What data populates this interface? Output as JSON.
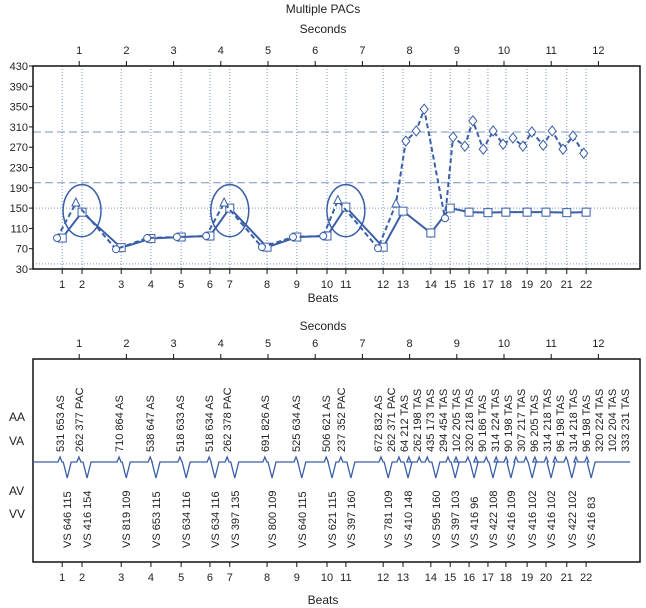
{
  "colors": {
    "series": "#3a5fa8",
    "grid": "#7a94c8",
    "axis": "#111111"
  },
  "chart_data": [
    {
      "type": "line",
      "title": "Multiple PACs",
      "top_axis_label": "Seconds",
      "xlabel": "Beats",
      "ylabel": "",
      "ylim": [
        30,
        430
      ],
      "yticks": [
        30,
        70,
        110,
        150,
        190,
        230,
        270,
        310,
        350,
        390,
        430
      ],
      "seconds_ticks": [
        1,
        2,
        3,
        4,
        5,
        6,
        7,
        8,
        9,
        10,
        11,
        12
      ],
      "reference_lines": [
        {
          "value": 300,
          "style": "dashed"
        },
        {
          "value": 200,
          "style": "dashed"
        },
        {
          "value": 150,
          "style": "dotted"
        },
        {
          "value": 40,
          "style": "dotted"
        }
      ],
      "beats": [
        1,
        2,
        3,
        4,
        5,
        6,
        7,
        8,
        9,
        10,
        11,
        12,
        13,
        14,
        15,
        16,
        17,
        18,
        19,
        20,
        21,
        22
      ],
      "beat_seconds": [
        0.64,
        1.06,
        1.89,
        2.52,
        3.16,
        3.77,
        4.19,
        4.98,
        5.61,
        6.25,
        6.65,
        7.44,
        7.86,
        8.45,
        8.86,
        9.26,
        9.66,
        10.04,
        10.49,
        10.89,
        11.33,
        11.74
      ],
      "highlighted_beats": [
        2,
        7,
        11
      ],
      "series": [
        {
          "style": "solid",
          "marker": "square",
          "x_seconds": [
            0.64,
            1.06,
            1.89,
            2.52,
            3.16,
            3.77,
            4.19,
            4.98,
            5.61,
            6.25,
            6.65,
            7.44,
            7.86,
            8.45,
            8.86,
            9.26,
            9.66,
            10.04,
            10.49,
            10.89,
            11.33,
            11.74
          ],
          "values": [
            91,
            142,
            72,
            90,
            93,
            95,
            150,
            73,
            93,
            95,
            152,
            73,
            144,
            101,
            150,
            142,
            141,
            142,
            142,
            142,
            141,
            142
          ]
        },
        {
          "style": "dashed",
          "x_seconds": [
            0.53,
            0.93,
            1.78,
            2.44,
            3.07,
            3.69,
            4.07,
            4.87,
            5.53,
            6.17,
            6.48,
            7.33,
            7.71,
            7.92,
            8.14,
            8.31,
            8.75,
            8.92,
            9.17,
            9.34,
            9.56,
            9.77,
            9.98,
            10.19,
            10.4,
            10.59,
            10.83,
            11.02,
            11.25,
            11.46,
            11.69
          ],
          "values": [
            91,
            160,
            69,
            91,
            93,
            95,
            160,
            73,
            93,
            95,
            165,
            71,
            158,
            282,
            302,
            345,
            130,
            290,
            272,
            322,
            266,
            302,
            276,
            288,
            272,
            300,
            274,
            302,
            266,
            292,
            258
          ],
          "markers": [
            "circle",
            "triangle",
            "circle",
            "circle",
            "circle",
            "circle",
            "triangle",
            "circle",
            "circle",
            "circle",
            "triangle",
            "circle",
            "triangle",
            "diamond",
            "diamond",
            "diamond",
            "circle",
            "diamond",
            "diamond",
            "diamond",
            "diamond",
            "diamond",
            "diamond",
            "diamond",
            "diamond",
            "diamond",
            "diamond",
            "diamond",
            "diamond",
            "diamond",
            "diamond"
          ]
        }
      ]
    },
    {
      "type": "table",
      "top_axis_label": "Seconds",
      "xlabel": "Beats",
      "row_labels": [
        "AA",
        "VA",
        "AV",
        "VV"
      ],
      "seconds_ticks": [
        1,
        2,
        3,
        4,
        5,
        6,
        7,
        8,
        9,
        10,
        11,
        12
      ],
      "atrial_events": [
        {
          "s": 0.53,
          "label": "531 653 AS"
        },
        {
          "s": 0.93,
          "label": "262 377 PAC"
        },
        {
          "s": 1.78,
          "label": "710 864 AS"
        },
        {
          "s": 2.44,
          "label": "538 647 AS"
        },
        {
          "s": 3.07,
          "label": "518 633 AS"
        },
        {
          "s": 3.69,
          "label": "518 634 AS"
        },
        {
          "s": 4.07,
          "label": "262 378 PAC"
        },
        {
          "s": 4.87,
          "label": "691 826 AS"
        },
        {
          "s": 5.53,
          "label": "525 634 AS"
        },
        {
          "s": 6.17,
          "label": "506 621 AS"
        },
        {
          "s": 6.48,
          "label": "237 352 PAC"
        },
        {
          "s": 7.33,
          "label": "672 832 AS"
        },
        {
          "s": 7.71,
          "label": "262 371 PAC"
        },
        {
          "s": 7.92,
          "label": "64 212 TAS"
        },
        {
          "s": 8.14,
          "label": "262 198 TAS"
        },
        {
          "s": 8.31,
          "label": "435 173 TAS"
        },
        {
          "s": 8.75,
          "label": "294 454 TAS"
        },
        {
          "s": 8.92,
          "label": "102 205 TAS"
        },
        {
          "s": 9.17,
          "label": "320 218 TAS"
        },
        {
          "s": 9.34,
          "label": "90 186 TAS"
        },
        {
          "s": 9.56,
          "label": "314 224 TAS"
        },
        {
          "s": 9.77,
          "label": "90 198 TAS"
        },
        {
          "s": 9.98,
          "label": "307 217 TAS"
        },
        {
          "s": 10.19,
          "label": "96 205 TAS"
        },
        {
          "s": 10.4,
          "label": "314 218 TAS"
        },
        {
          "s": 10.59,
          "label": "96 198 TAS"
        },
        {
          "s": 10.83,
          "label": "314 218 TAS"
        },
        {
          "s": 11.02,
          "label": "96 198 TAS"
        },
        {
          "s": 11.25,
          "label": "320 224 TAS"
        },
        {
          "s": 11.46,
          "label": "102 204 TAS"
        },
        {
          "s": 11.69,
          "label": "333 231 TAS"
        }
      ],
      "ventricular_labels": [
        "VS 646 115",
        "VS 416 154",
        "VS 819 109",
        "VS 653 115",
        "VS 634 116",
        "VS 634 116",
        "VS 397 135",
        "VS 800 109",
        "VS 640 115",
        "VS 621 115",
        "VS 397 160",
        "VS 781 109",
        "VS 410 148",
        "VS 595 160",
        "VS 397 103",
        "VS 416 96",
        "VS 422 108",
        "VS 416 109",
        "VS 416 102",
        "VS 416 102",
        "VS 422 102",
        "VS 416 83"
      ]
    }
  ]
}
